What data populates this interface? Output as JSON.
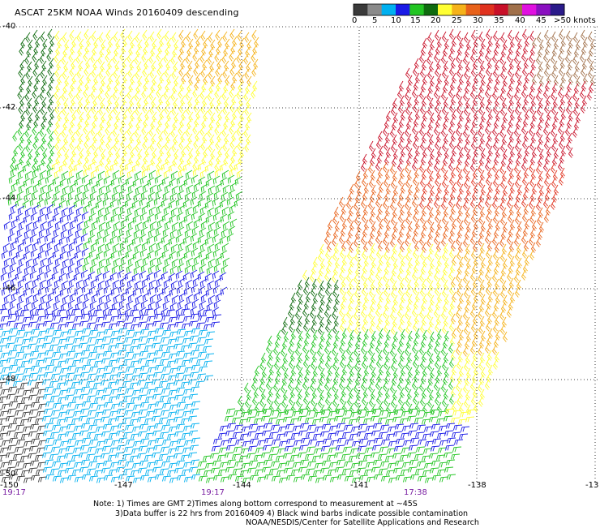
{
  "title": "ASCAT 25KM NOAA Winds 20160409 descending",
  "legend": {
    "unit": "knots",
    "colors": [
      "#3a3a3a",
      "#8a8a8a",
      "#00b0f0",
      "#1a1ae6",
      "#22c522",
      "#0f6b0f",
      "#ffff33",
      "#f5b21a",
      "#e8621a",
      "#e0321e",
      "#c81028",
      "#a0704a",
      "#e010e0",
      "#8a10c0",
      "#2a1a8a"
    ],
    "labels": [
      "0",
      "5",
      "10",
      "15",
      "20",
      "25",
      "30",
      "35",
      "40",
      "45",
      ">50 knots"
    ]
  },
  "lat_labels": [
    "-40",
    "-42",
    "-44",
    "-46",
    "-48",
    "-50"
  ],
  "lon_labels": [
    "-150",
    "-147",
    "-144",
    "-141",
    "-138",
    "-13"
  ],
  "time_labels": [
    "19:17",
    "19:17",
    "17:38"
  ],
  "notes": {
    "line1": "Note: 1) Times are GMT 2)Times along bottom correspond to measurement at ~45S",
    "line2": "3)Data buffer is 22 hrs from 20160409 4) Black wind barbs indicate possible contamination",
    "line3": "NOAA/NESDIS/Center for Satellite Applications and Research"
  }
}
